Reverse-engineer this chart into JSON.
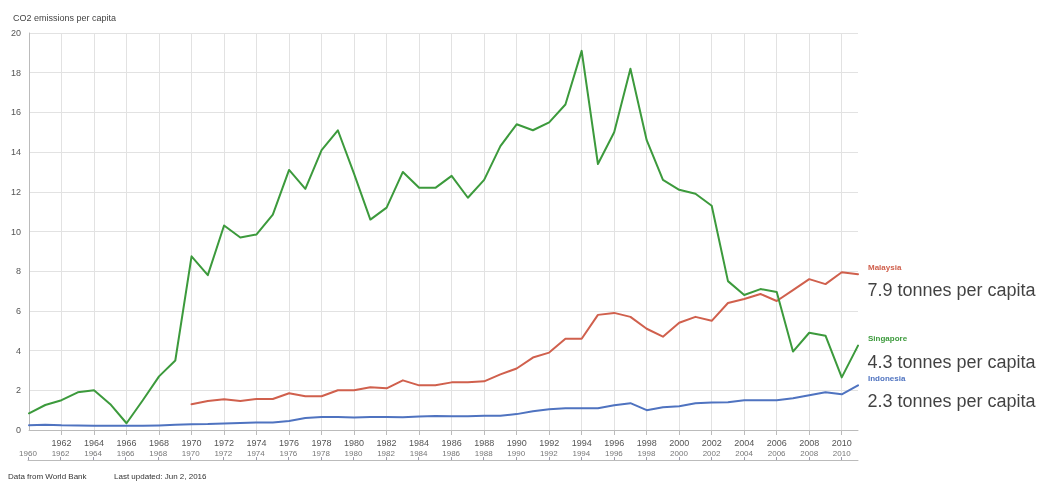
{
  "chart_data": {
    "type": "line",
    "title": "CO2 emissions per capita",
    "x": [
      1960,
      1961,
      1962,
      1963,
      1964,
      1965,
      1966,
      1967,
      1968,
      1969,
      1970,
      1971,
      1972,
      1973,
      1974,
      1975,
      1976,
      1977,
      1978,
      1979,
      1980,
      1981,
      1982,
      1983,
      1984,
      1985,
      1986,
      1987,
      1988,
      1989,
      1990,
      1991,
      1992,
      1993,
      1994,
      1995,
      1996,
      1997,
      1998,
      1999,
      2000,
      2001,
      2002,
      2003,
      2004,
      2005,
      2006,
      2007,
      2008,
      2009,
      2010,
      2011
    ],
    "series": [
      {
        "name": "Malaysia",
        "color": "#d0604d",
        "values": [
          null,
          null,
          null,
          null,
          null,
          null,
          null,
          null,
          null,
          null,
          1.3,
          1.46,
          1.55,
          1.46,
          1.56,
          1.56,
          1.85,
          1.7,
          1.7,
          2.0,
          2.0,
          2.15,
          2.1,
          2.5,
          2.25,
          2.25,
          2.4,
          2.4,
          2.45,
          2.8,
          3.1,
          3.65,
          3.9,
          4.6,
          4.6,
          5.8,
          5.9,
          5.7,
          5.1,
          4.7,
          5.4,
          5.7,
          5.5,
          6.4,
          6.6,
          6.85,
          6.5,
          7.05,
          7.6,
          7.35,
          7.95,
          7.85
        ]
      },
      {
        "name": "Singapore",
        "color": "#3c9a3c",
        "values": [
          0.84,
          1.26,
          1.5,
          1.9,
          2.0,
          1.3,
          0.34,
          1.5,
          2.7,
          3.5,
          8.75,
          7.8,
          10.3,
          9.7,
          9.85,
          10.85,
          13.1,
          12.15,
          14.1,
          15.1,
          12.9,
          10.6,
          11.2,
          13.0,
          12.2,
          12.2,
          12.8,
          11.7,
          12.6,
          14.3,
          15.4,
          15.1,
          15.5,
          16.4,
          19.1,
          13.4,
          15.0,
          18.2,
          14.6,
          12.6,
          12.1,
          11.9,
          11.3,
          7.5,
          6.8,
          7.1,
          6.95,
          3.95,
          4.9,
          4.75,
          2.65,
          4.25
        ]
      },
      {
        "name": "Indonesia",
        "color": "#4f73c0",
        "values": [
          0.24,
          0.27,
          0.24,
          0.23,
          0.22,
          0.22,
          0.21,
          0.21,
          0.23,
          0.26,
          0.29,
          0.3,
          0.33,
          0.35,
          0.38,
          0.38,
          0.45,
          0.6,
          0.65,
          0.65,
          0.63,
          0.65,
          0.66,
          0.64,
          0.68,
          0.7,
          0.69,
          0.69,
          0.72,
          0.72,
          0.8,
          0.95,
          1.05,
          1.1,
          1.1,
          1.1,
          1.25,
          1.35,
          1.0,
          1.15,
          1.2,
          1.35,
          1.38,
          1.4,
          1.5,
          1.5,
          1.5,
          1.6,
          1.75,
          1.9,
          1.8,
          2.25
        ]
      }
    ],
    "xlim": [
      1960,
      2011
    ],
    "xticks": [
      1962,
      1964,
      1966,
      1968,
      1970,
      1972,
      1974,
      1976,
      1978,
      1980,
      1982,
      1984,
      1986,
      1988,
      1990,
      1992,
      1994,
      1996,
      1998,
      2000,
      2002,
      2004,
      2006,
      2008,
      2010
    ],
    "x2lim": [
      1960,
      2011
    ],
    "x2ticks": [
      1960,
      1962,
      1964,
      1966,
      1968,
      1970,
      1972,
      1974,
      1976,
      1978,
      1980,
      1982,
      1984,
      1986,
      1988,
      1990,
      1992,
      1994,
      1996,
      1998,
      2000,
      2002,
      2004,
      2006,
      2008,
      2010
    ],
    "ylim": [
      0,
      20
    ],
    "yticks": [
      0,
      2,
      4,
      6,
      8,
      10,
      12,
      14,
      16,
      18,
      20
    ],
    "grid": true,
    "marker": "none",
    "line_style": "solid",
    "annotations": [
      "7.9 tonnes per capita",
      "4.3 tonnes per capita",
      "2.3 tonnes per capita",
      "Data from World Bank",
      "Last updated: Jun 2, 2016"
    ]
  }
}
